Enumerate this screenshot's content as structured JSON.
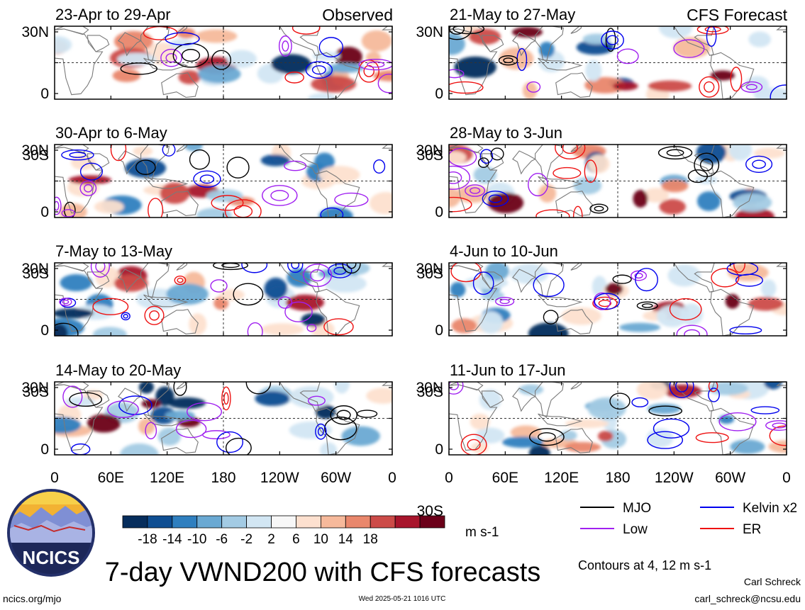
{
  "colors": {
    "mjo": "#000000",
    "kelvin": "#0000ee",
    "low": "#a020f0",
    "er": "#ee1111",
    "land": "#7a7a7a",
    "frame": "#000000",
    "positive": [
      "#fde0cf",
      "#f6b99b",
      "#e9876c",
      "#cc4b48",
      "#a8152c",
      "#6b0019"
    ],
    "negative": [
      "#d2e6f3",
      "#a3cbe4",
      "#6aa9d3",
      "#2f7fbf",
      "#0f4e92",
      "#062d5c"
    ]
  },
  "panels": {
    "left": [
      "23-Apr to 29-Apr",
      "30-Apr to 6-May",
      "7-May to 13-May",
      "14-May to 20-May"
    ],
    "right": [
      "21-May to 27-May",
      "28-May to 3-Jun",
      "4-Jun to 10-Jun",
      "11-Jun to 17-Jun"
    ],
    "observed_label": "Observed",
    "forecast_label": "CFS Forecast"
  },
  "axis": {
    "x_ticks": [
      "0",
      "60E",
      "120E",
      "180",
      "120W",
      "60W",
      "0"
    ],
    "y_ticks": [
      "30N",
      "0",
      "30S"
    ]
  },
  "colorbar": {
    "ticks": [
      "-18",
      "-14",
      "-10",
      "-6",
      "-2",
      "2",
      "6",
      "10",
      "14",
      "18"
    ],
    "colors": [
      "#062d5c",
      "#0f4e92",
      "#2f7fbf",
      "#6aa9d3",
      "#a3cbe4",
      "#d2e6f3",
      "#f7f7f7",
      "#fde0cf",
      "#f6b99b",
      "#e9876c",
      "#cc4b48",
      "#a8152c",
      "#6b0019"
    ],
    "units": "m s-1"
  },
  "legend": {
    "items": [
      {
        "label": "MJO",
        "color": "#000000"
      },
      {
        "label": "Kelvin x2",
        "color": "#0000ee"
      },
      {
        "label": "Low",
        "color": "#a020f0"
      },
      {
        "label": "ER",
        "color": "#ee1111"
      }
    ],
    "contours_note": "Contours at 4, 12 m s-1"
  },
  "title": "7-day VWND200 with CFS forecasts",
  "logo_text": "NCICS",
  "footer": {
    "left": "ncics.org/mjo",
    "center": "Wed 2025-05-21 1016 UTC",
    "author": "Carl Schreck",
    "email": "carl_schreck@ncsu.edu"
  },
  "chart_data": {
    "type": "heatmap",
    "variable": "VWND200",
    "units": "m s-1",
    "x_range": [
      "0",
      "0"
    ],
    "y_range": [
      "30S",
      "30N"
    ]
  }
}
